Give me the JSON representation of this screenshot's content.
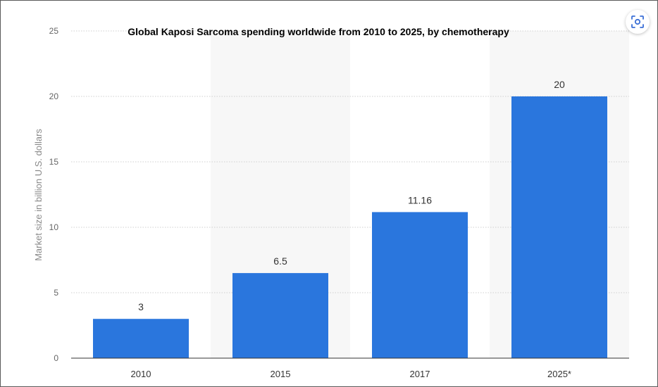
{
  "chart_data": {
    "type": "bar",
    "title": "Global Kaposi Sarcoma spending worldwide from 2010 to 2025, by chemotherapy",
    "xlabel": "",
    "ylabel": "Market size in billion U.S. dollars",
    "categories": [
      "2010",
      "2015",
      "2017",
      "2025*"
    ],
    "values": [
      3,
      6.5,
      11.16,
      20
    ],
    "value_labels": [
      "3",
      "6.5",
      "11.16",
      "20"
    ],
    "ylim": [
      0,
      25
    ],
    "yticks": [
      0,
      5,
      10,
      15,
      20,
      25
    ],
    "grid": true,
    "bar_color": "#2a76dd",
    "band_color": "#f7f7f7",
    "legend": "none"
  },
  "toolbar": {
    "scan_icon": "visual-search-icon",
    "accent_color": "#2a76dd"
  }
}
